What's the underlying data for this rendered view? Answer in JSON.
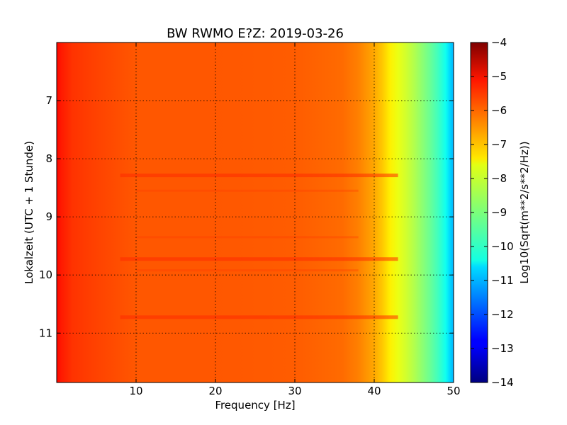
{
  "chart_data": {
    "type": "heatmap",
    "title": "BW RWMO E?Z: 2019-03-26",
    "xlabel": "Frequency [Hz]",
    "ylabel": "Lokalzeit (UTC + 1 Stunde)",
    "colorbar_label": "Log10(Sqrt(m**2/s**2/Hz))",
    "xlim": [
      0,
      50
    ],
    "ylim": [
      11.85,
      6.0
    ],
    "y_axis_inverted": true,
    "x_ticks": [
      10,
      20,
      30,
      40,
      50
    ],
    "y_ticks": [
      7,
      8,
      9,
      10,
      11
    ],
    "grid": true,
    "colormap": "jet",
    "color_range": [
      -14,
      -4
    ],
    "colorbar_ticks": [
      -4,
      -5,
      -6,
      -7,
      -8,
      -9,
      -10,
      -11,
      -12,
      -13,
      -14
    ],
    "frequency_profile": {
      "frequency_hz": [
        0,
        0.6,
        2,
        5,
        10,
        20,
        30,
        36,
        38,
        40,
        41,
        42,
        43,
        44,
        45,
        46,
        47,
        48,
        49,
        49.5,
        50
      ],
      "log10_amplitude": [
        -5.3,
        -5.5,
        -5.75,
        -5.9,
        -6.1,
        -6.1,
        -6.15,
        -6.3,
        -6.5,
        -6.9,
        -7.2,
        -7.6,
        -7.95,
        -8.2,
        -8.5,
        -8.85,
        -9.2,
        -9.6,
        -10.1,
        -10.6,
        -11.0
      ]
    },
    "stronger_bands_hours": [
      8.28,
      9.72,
      10.72
    ],
    "weaker_bands_hours": [
      9.35,
      9.92,
      8.55
    ]
  },
  "colors": {
    "axes_edge": "#000000",
    "grid": "#000000"
  }
}
